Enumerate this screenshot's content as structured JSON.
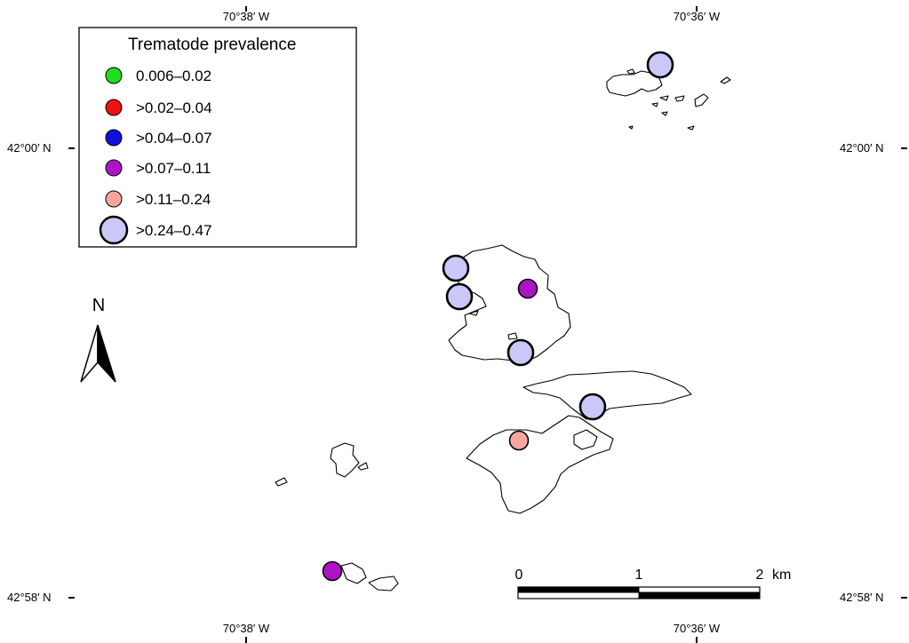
{
  "coordinates": {
    "lon_left_top": "70°38′ W",
    "lon_right_top": "70°36′ W",
    "lon_left_bottom": "70°38′ W",
    "lon_right_bottom": "70°36′ W",
    "lat_upper_left": "42°00′ N",
    "lat_upper_right": "42°00′ N",
    "lat_lower_left": "42°58′ N",
    "lat_lower_right": "42°58′ N"
  },
  "legend": {
    "title": "Trematode prevalence",
    "items": [
      {
        "label": "0.006–0.02",
        "color": "#22dd22",
        "size": "small"
      },
      {
        "label": ">0.02–0.04",
        "color": "#ee1111",
        "size": "small"
      },
      {
        "label": ">0.04–0.07",
        "color": "#1111dd",
        "size": "small"
      },
      {
        "label": ">0.07–0.11",
        "color": "#b012c8",
        "size": "small"
      },
      {
        "label": ">0.11–0.24",
        "color": "#f7a59e",
        "size": "small"
      },
      {
        "label": ">0.24–0.47",
        "color": "#c9c8f6",
        "size": "large"
      }
    ]
  },
  "north_arrow": {
    "label": "N"
  },
  "scale_bar": {
    "tick_0": "0",
    "tick_1": "1",
    "tick_2": "2",
    "unit": "km"
  },
  "sites": [
    {
      "class": ">0.24–0.47"
    },
    {
      "class": ">0.24–0.47"
    },
    {
      "class": ">0.24–0.47"
    },
    {
      "class": ">0.07–0.11"
    },
    {
      "class": ">0.24–0.47"
    },
    {
      "class": ">0.24–0.47"
    },
    {
      "class": ">0.11–0.24"
    },
    {
      "class": ">0.07–0.11"
    }
  ]
}
